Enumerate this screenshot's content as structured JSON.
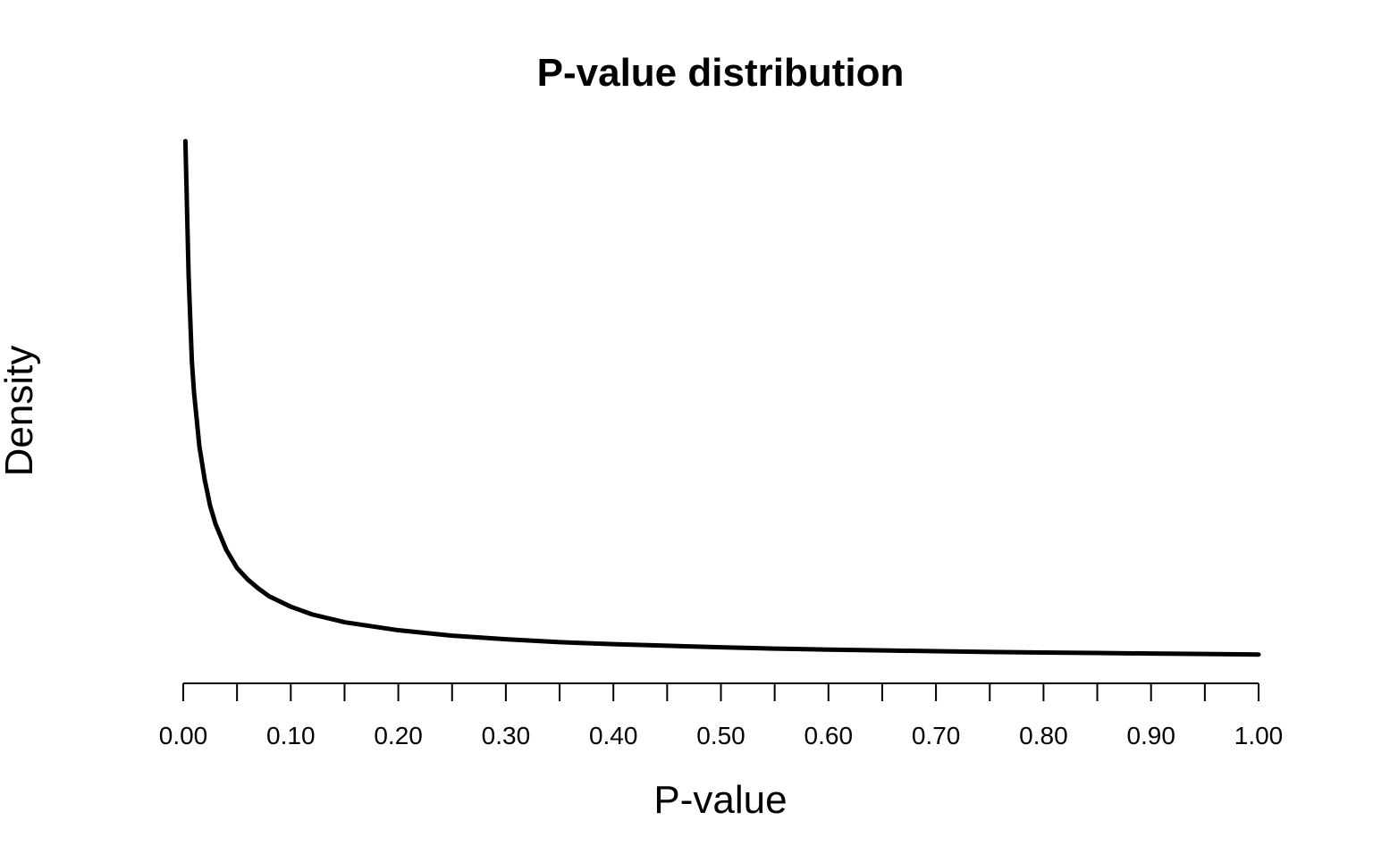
{
  "chart_data": {
    "type": "line",
    "title": "P-value distribution",
    "xlabel": "P-value",
    "ylabel": "Density",
    "xlim": [
      0,
      1
    ],
    "x_tick_labels": [
      "0.00",
      "0.10",
      "0.20",
      "0.30",
      "0.40",
      "0.50",
      "0.60",
      "0.70",
      "0.80",
      "0.90",
      "1.00"
    ],
    "x_tick_values": [
      0.0,
      0.05,
      0.1,
      0.15,
      0.2,
      0.25,
      0.3,
      0.35,
      0.4,
      0.45,
      0.5,
      0.55,
      0.6,
      0.65,
      0.7,
      0.75,
      0.8,
      0.85,
      0.9,
      0.95,
      1.0
    ],
    "y_axis_visible": false,
    "grid": false,
    "line_color": "#000000",
    "series": [
      {
        "x": [
          0.002,
          0.005,
          0.008,
          0.01,
          0.015,
          0.02,
          0.025,
          0.03,
          0.04,
          0.05,
          0.06,
          0.07,
          0.08,
          0.1,
          0.12,
          0.15,
          0.2,
          0.25,
          0.3,
          0.35,
          0.4,
          0.45,
          0.5,
          0.55,
          0.6,
          0.65,
          0.7,
          0.75,
          0.8,
          0.85,
          0.9,
          0.95,
          1.0
        ],
        "values": [
          20.1,
          14.9,
          11.6,
          10.4,
          8.3,
          7.0,
          6.0,
          5.3,
          4.3,
          3.6,
          3.15,
          2.8,
          2.5,
          2.1,
          1.8,
          1.5,
          1.19,
          0.98,
          0.84,
          0.73,
          0.65,
          0.59,
          0.53,
          0.48,
          0.44,
          0.41,
          0.38,
          0.35,
          0.33,
          0.31,
          0.29,
          0.27,
          0.25
        ]
      }
    ],
    "ylim": [
      0,
      20.1
    ]
  }
}
